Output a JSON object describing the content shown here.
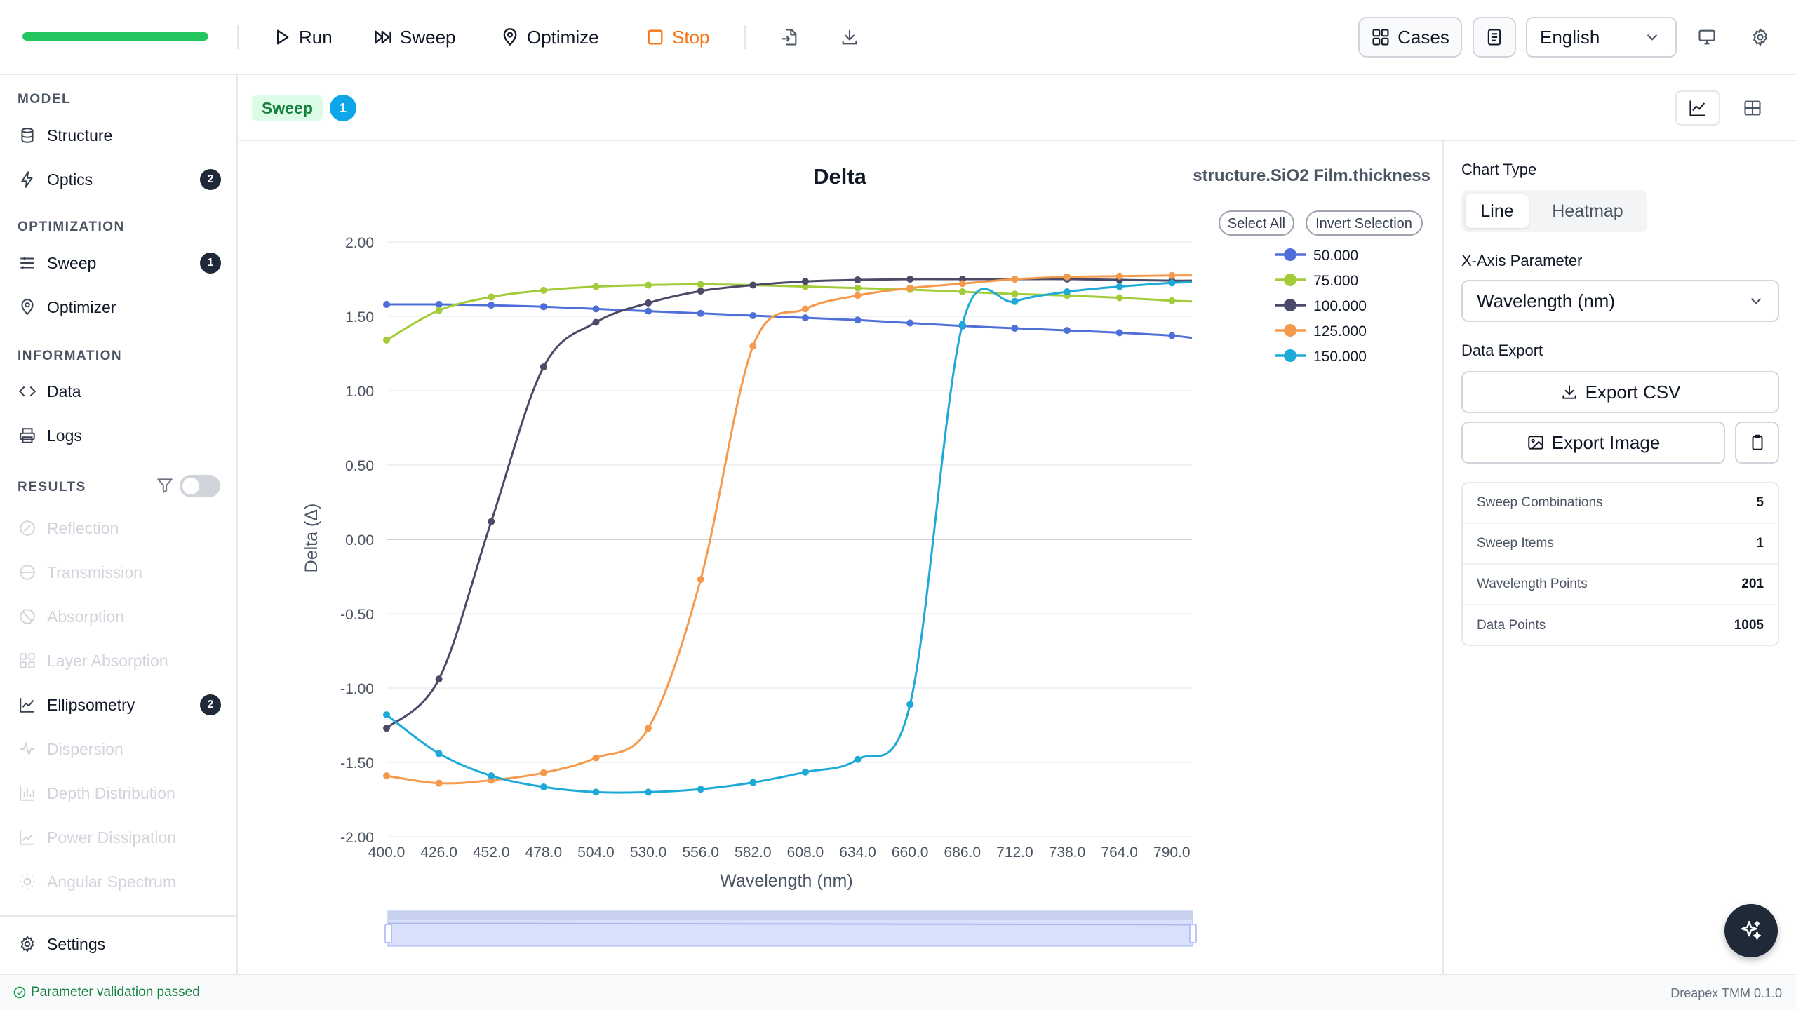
{
  "toolbar": {
    "progress": 1.0,
    "run_label": "Run",
    "sweep_label": "Sweep",
    "optimize_label": "Optimize",
    "stop_label": "Stop",
    "cases_label": "Cases",
    "language": "English",
    "colors": {
      "progress": "#22c55e",
      "stop": "#f97316"
    }
  },
  "sidebar": {
    "sections": {
      "model": "MODEL",
      "optimization": "OPTIMIZATION",
      "information": "INFORMATION",
      "results": "RESULTS"
    },
    "items": {
      "structure": "Structure",
      "optics": "Optics",
      "optics_badge": "2",
      "sweep": "Sweep",
      "sweep_badge": "1",
      "optimizer": "Optimizer",
      "data": "Data",
      "logs": "Logs",
      "reflection": "Reflection",
      "transmission": "Transmission",
      "absorption": "Absorption",
      "layer_absorption": "Layer Absorption",
      "ellipsometry": "Ellipsometry",
      "ellipsometry_badge": "2",
      "dispersion": "Dispersion",
      "depth_distribution": "Depth Distribution",
      "power_dissipation": "Power Dissipation",
      "angular_spectrum": "Angular Spectrum",
      "settings": "Settings"
    }
  },
  "subheader": {
    "tag": "Sweep",
    "count": "1"
  },
  "chart_controls": {
    "select_all": "Select All",
    "invert_selection": "Invert Selection"
  },
  "chart_data": {
    "type": "line",
    "title": "Delta",
    "subtitle": "structure.SiO2 Film.thickness",
    "xlabel": "Wavelength (nm)",
    "ylabel": "Delta (Δ)",
    "xlim": [
      400,
      800
    ],
    "ylim": [
      -2.0,
      2.0
    ],
    "xticks": [
      "400.0",
      "426.0",
      "452.0",
      "478.0",
      "504.0",
      "530.0",
      "556.0",
      "582.0",
      "608.0",
      "634.0",
      "660.0",
      "686.0",
      "712.0",
      "738.0",
      "764.0",
      "790.0"
    ],
    "yticks": [
      "2.00",
      "1.50",
      "1.00",
      "0.50",
      "0.00",
      "-0.50",
      "-1.00",
      "-1.50",
      "-2.00"
    ],
    "legend_position": "top-right",
    "grid": true,
    "x": [
      400,
      426,
      452,
      478,
      504,
      530,
      556,
      582,
      608,
      634,
      660,
      686,
      712,
      738,
      764,
      790,
      800
    ],
    "series": [
      {
        "name": "50.000",
        "color": "#4f6fd8",
        "values": [
          1.58,
          1.58,
          1.575,
          1.565,
          1.55,
          1.535,
          1.52,
          1.505,
          1.49,
          1.475,
          1.455,
          1.435,
          1.42,
          1.405,
          1.39,
          1.37,
          1.355
        ]
      },
      {
        "name": "75.000",
        "color": "#a3cc3a",
        "values": [
          1.34,
          1.54,
          1.63,
          1.675,
          1.7,
          1.71,
          1.715,
          1.71,
          1.7,
          1.69,
          1.68,
          1.665,
          1.65,
          1.64,
          1.625,
          1.605,
          1.6
        ]
      },
      {
        "name": "100.000",
        "color": "#4b4a68",
        "values": [
          -1.27,
          -0.94,
          0.12,
          1.16,
          1.46,
          1.59,
          1.67,
          1.71,
          1.735,
          1.745,
          1.75,
          1.75,
          1.75,
          1.75,
          1.745,
          1.74,
          1.74
        ]
      },
      {
        "name": "125.000",
        "color": "#f59a4c",
        "values": [
          -1.59,
          -1.64,
          -1.62,
          -1.57,
          -1.47,
          -1.27,
          -0.27,
          1.3,
          1.55,
          1.64,
          1.69,
          1.72,
          1.75,
          1.765,
          1.77,
          1.775,
          1.775
        ]
      },
      {
        "name": "150.000",
        "color": "#1eaad8",
        "values": [
          -1.18,
          -1.44,
          -1.59,
          -1.665,
          -1.7,
          -1.7,
          -1.68,
          -1.635,
          -1.565,
          -1.48,
          -1.11,
          1.445,
          1.6,
          1.665,
          1.7,
          1.725,
          1.73
        ]
      }
    ],
    "zoom_range": [
      0,
      100
    ]
  },
  "right_panel": {
    "chart_type_label": "Chart Type",
    "chart_type_options": [
      "Line",
      "Heatmap"
    ],
    "chart_type_selected": "Line",
    "x_axis_label": "X-Axis Parameter",
    "x_axis_value": "Wavelength (nm)",
    "data_export_label": "Data Export",
    "export_csv": "Export CSV",
    "export_image": "Export Image",
    "stats": [
      {
        "label": "Sweep Combinations",
        "value": "5"
      },
      {
        "label": "Sweep Items",
        "value": "1"
      },
      {
        "label": "Wavelength Points",
        "value": "201"
      },
      {
        "label": "Data Points",
        "value": "1005"
      }
    ]
  },
  "statusbar": {
    "status": "Parameter validation passed",
    "version": "Dreapex TMM 0.1.0"
  }
}
